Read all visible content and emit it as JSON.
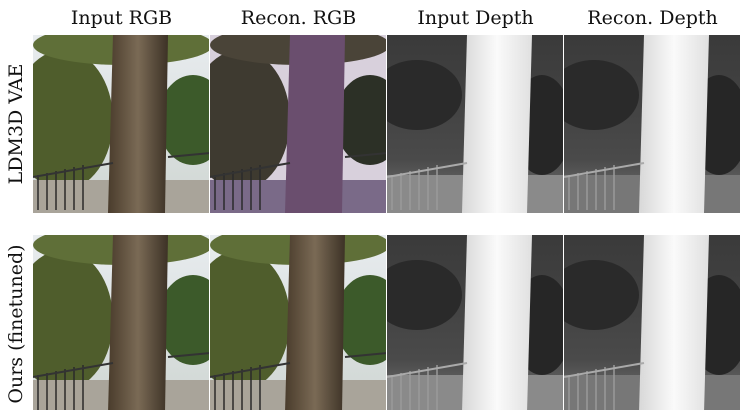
{
  "columns": [
    "Input RGB",
    "Recon. RGB",
    "Input Depth",
    "Recon. Depth"
  ],
  "rows": [
    "LDM3D VAE",
    "Ours (finetuned)"
  ]
}
